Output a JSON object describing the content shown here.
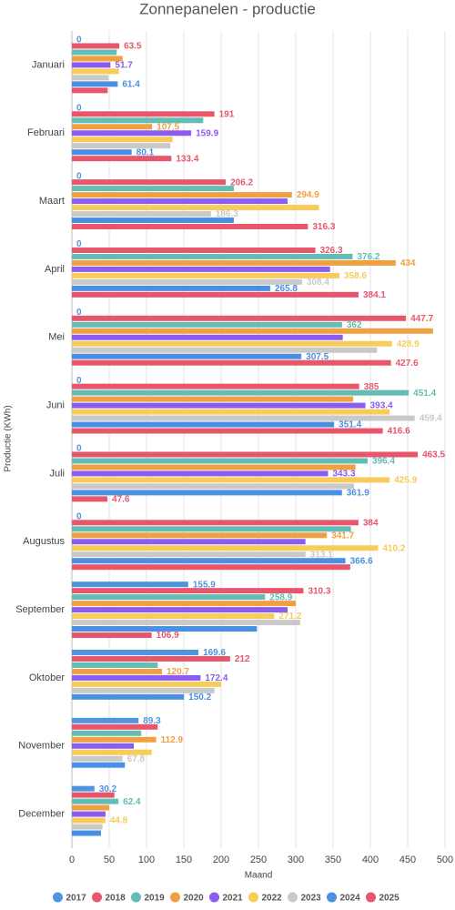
{
  "chart_data": {
    "type": "hbar",
    "title": "Zonnepanelen - productie",
    "x_label": "Maand",
    "y_label": "Productie (KWh)",
    "categories": [
      "Januari",
      "Februari",
      "Maart",
      "April",
      "Mei",
      "Juni",
      "Juli",
      "Augustus",
      "September",
      "Oktober",
      "November",
      "December"
    ],
    "xlim": [
      0,
      500
    ],
    "xticks": [
      0,
      50,
      100,
      150,
      200,
      250,
      300,
      350,
      400,
      450,
      500
    ],
    "grid": true,
    "legend": "bottom",
    "series": [
      {
        "name": "2017",
        "color": "#4e95e0",
        "values": [
          0,
          0,
          0,
          0,
          0,
          0,
          0,
          0,
          155.9,
          169.6,
          89.3,
          30.2
        ],
        "value_labels": [
          "0",
          "0",
          "0",
          "0",
          "0",
          "0",
          "0",
          "0",
          "155.9",
          "169.6",
          "89.3",
          "30.2"
        ]
      },
      {
        "name": "2018",
        "color": "#e8566b",
        "values": [
          63.5,
          191,
          206.2,
          326.3,
          447.7,
          385,
          463.5,
          384,
          310.3,
          212,
          115,
          57
        ],
        "value_labels": [
          "63.5",
          "191",
          "206.2",
          "326.3",
          "447.7",
          "385",
          "463.5",
          "384",
          "310.3",
          "212",
          null,
          null
        ]
      },
      {
        "name": "2019",
        "color": "#62bdb5",
        "values": [
          60,
          176,
          217,
          376.2,
          362,
          451.4,
          396.4,
          374,
          258.9,
          115,
          93,
          62.4
        ],
        "value_labels": [
          null,
          null,
          null,
          "376.2",
          "362",
          "451.4",
          "396.4",
          null,
          "258.9",
          null,
          null,
          "62.4"
        ]
      },
      {
        "name": "2020",
        "color": "#f0a040",
        "values": [
          68,
          107.5,
          294.9,
          434,
          484,
          377,
          380,
          341.7,
          300,
          120.7,
          112.9,
          50
        ],
        "value_labels": [
          null,
          "107.5",
          "294.9",
          "434",
          null,
          null,
          null,
          "341.7",
          null,
          "120.7",
          "112.9",
          null
        ]
      },
      {
        "name": "2021",
        "color": "#8b5cf0",
        "values": [
          51.7,
          159.9,
          289,
          346,
          363,
          393.4,
          343.3,
          313,
          289,
          172.4,
          83,
          45
        ],
        "value_labels": [
          "51.7",
          "159.9",
          null,
          null,
          null,
          "393.4",
          "343.3",
          null,
          null,
          "172.4",
          null,
          null
        ]
      },
      {
        "name": "2022",
        "color": "#f7cc5a",
        "values": [
          63,
          135,
          331,
          358.6,
          428.9,
          426,
          425.9,
          410.2,
          271.2,
          200,
          107,
          44.8
        ],
        "value_labels": [
          null,
          null,
          null,
          "358.6",
          "428.9",
          null,
          "425.9",
          "410.2",
          "271.2",
          null,
          null,
          "44.8"
        ]
      },
      {
        "name": "2023",
        "color": "#c9c9c9",
        "values": [
          49,
          132,
          186.3,
          308.4,
          409,
          459.4,
          378,
          313.1,
          306,
          191,
          67.8,
          41
        ],
        "value_labels": [
          null,
          null,
          "186.3",
          "308.4",
          null,
          "459.4",
          null,
          "313.1",
          null,
          null,
          "67.8",
          null
        ]
      },
      {
        "name": "2024",
        "color": "#4a90e2",
        "values": [
          61.4,
          80.1,
          217,
          265.8,
          307.5,
          351.4,
          361.9,
          366.6,
          248,
          150.2,
          71,
          39
        ],
        "value_labels": [
          "61.4",
          "80.1",
          null,
          "265.8",
          "307.5",
          "351.4",
          "361.9",
          "366.6",
          null,
          "150.2",
          null,
          null
        ]
      },
      {
        "name": "2025",
        "color": "#e8566b",
        "values": [
          48,
          133.4,
          316.3,
          384.1,
          427.6,
          416.6,
          47.6,
          373,
          106.9,
          null,
          null,
          null
        ],
        "value_labels": [
          null,
          "133.4",
          "316.3",
          "384.1",
          "427.6",
          "416.6",
          "47.6",
          null,
          "106.9",
          null,
          null,
          null
        ]
      }
    ]
  }
}
